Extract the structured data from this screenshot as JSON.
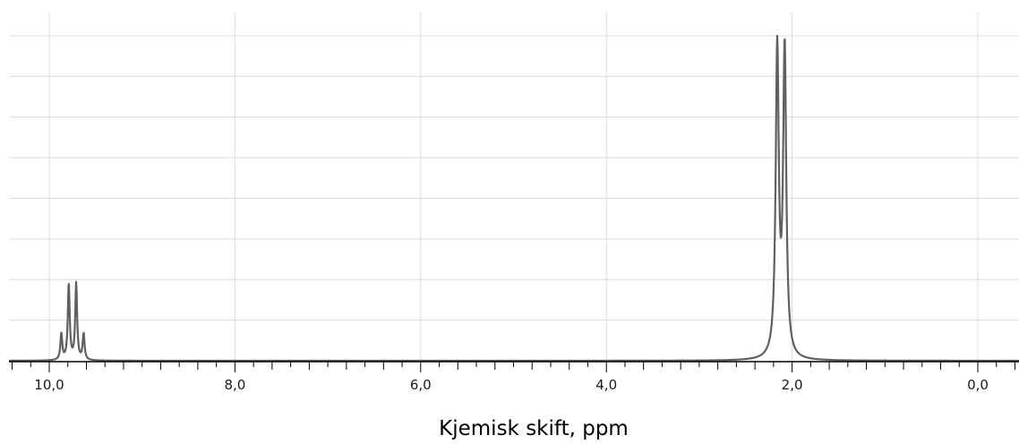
{
  "chart_data": {
    "type": "line",
    "title": "",
    "xlabel": "Kjemisk skift, ppm",
    "ylabel": "",
    "xlim": [
      10.4,
      -0.4
    ],
    "ylim": [
      0,
      1.0
    ],
    "x_reversed": true,
    "grid": true,
    "x_tick_labels": [
      {
        "value": 10.0,
        "label": "10,0"
      },
      {
        "value": 8.0,
        "label": "8,0"
      },
      {
        "value": 6.0,
        "label": "6,0"
      },
      {
        "value": 4.0,
        "label": "4,0"
      },
      {
        "value": 2.0,
        "label": "2,0"
      },
      {
        "value": 0.0,
        "label": "0,0"
      }
    ],
    "x_minor_step": 0.4,
    "y_gridlines": [
      0.125,
      0.25,
      0.375,
      0.5,
      0.625,
      0.75,
      0.875,
      1.0
    ],
    "peaks": [
      {
        "x": 9.87,
        "height": 0.085
      },
      {
        "x": 9.79,
        "height": 0.25
      },
      {
        "x": 9.71,
        "height": 0.25
      },
      {
        "x": 9.63,
        "height": 0.085
      },
      {
        "x": 2.16,
        "height": 1.0
      },
      {
        "x": 2.08,
        "height": 1.0
      }
    ],
    "line_color": "#606060",
    "grid_color": "#dcdcdc"
  }
}
